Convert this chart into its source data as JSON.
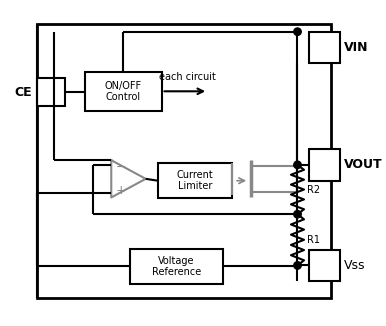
{
  "bg_color": "#ffffff",
  "line_color": "#000000",
  "gray_color": "#888888",
  "CE_label": "CE",
  "onoff_label": "ON/OFF\nControl",
  "current_limiter_label": "Current\nLimiter",
  "voltage_ref_label": "Voltage\nReference",
  "VIN_label": "VIN",
  "VOUT_label": "VOUT",
  "VSS_label": "Vss",
  "R2_label": "R2",
  "R1_label": "R1",
  "each_circuit_label": "each circuit",
  "figsize": [
    3.86,
    3.26
  ],
  "dpi": 100
}
